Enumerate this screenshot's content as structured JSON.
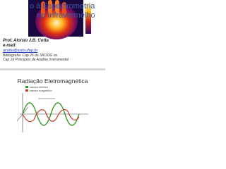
{
  "slide1": {
    "title_lines": [
      "o à Espectrometria",
      "no Infravermelho"
    ],
    "author": "Prof. Aloisio J.B. Cotta",
    "email_label": "e-mail:",
    "email": "acotta@iceb.ufop.br",
    "bibliography": [
      "Bibliografia: Cap 26 do SKOOG ou",
      "Cap 16 Princípios de Análise Instrumental"
    ]
  },
  "slide2": {
    "title": "Radiação Eletromagnética",
    "legend": [
      "campo elétrico",
      "campo magnético"
    ]
  }
}
